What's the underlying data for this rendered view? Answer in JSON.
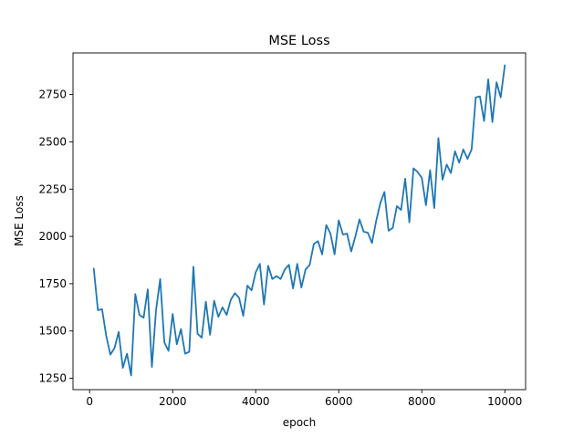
{
  "chart_data": {
    "type": "line",
    "title": "MSE Loss",
    "xlabel": "epoch",
    "ylabel": "MSE Loss",
    "xlim": [
      -400,
      10500
    ],
    "ylim": [
      1190,
      2970
    ],
    "xticks": [
      0,
      2000,
      4000,
      6000,
      8000,
      10000
    ],
    "yticks": [
      1250,
      1500,
      1750,
      2000,
      2250,
      2500,
      2750
    ],
    "grid": false,
    "color": "#1f77b4",
    "x": [
      100,
      200,
      300,
      400,
      500,
      600,
      700,
      800,
      900,
      1000,
      1100,
      1200,
      1300,
      1400,
      1500,
      1600,
      1700,
      1800,
      1900,
      2000,
      2100,
      2200,
      2300,
      2400,
      2500,
      2600,
      2700,
      2800,
      2900,
      3000,
      3100,
      3200,
      3300,
      3400,
      3500,
      3600,
      3700,
      3800,
      3900,
      4000,
      4100,
      4200,
      4300,
      4400,
      4500,
      4600,
      4700,
      4800,
      4900,
      5000,
      5100,
      5200,
      5300,
      5400,
      5500,
      5600,
      5700,
      5800,
      5900,
      6000,
      6100,
      6200,
      6300,
      6400,
      6500,
      6600,
      6700,
      6800,
      6900,
      7000,
      7100,
      7200,
      7300,
      7400,
      7500,
      7600,
      7700,
      7800,
      7900,
      8000,
      8100,
      8200,
      8300,
      8400,
      8500,
      8600,
      8700,
      8800,
      8900,
      9000,
      9100,
      9200,
      9300,
      9400,
      9500,
      9600,
      9700,
      9800,
      9900,
      10000
    ],
    "y": [
      1830,
      1610,
      1615,
      1475,
      1375,
      1410,
      1495,
      1305,
      1380,
      1265,
      1695,
      1585,
      1570,
      1720,
      1310,
      1610,
      1775,
      1440,
      1395,
      1590,
      1430,
      1510,
      1380,
      1390,
      1840,
      1485,
      1465,
      1655,
      1480,
      1660,
      1575,
      1625,
      1585,
      1665,
      1700,
      1675,
      1580,
      1740,
      1715,
      1810,
      1855,
      1640,
      1845,
      1775,
      1790,
      1775,
      1825,
      1850,
      1725,
      1855,
      1730,
      1825,
      1850,
      1960,
      1975,
      1905,
      2060,
      2015,
      1905,
      2085,
      2010,
      2015,
      1920,
      2000,
      2090,
      2025,
      2020,
      1965,
      2080,
      2175,
      2235,
      2030,
      2045,
      2160,
      2140,
      2305,
      2075,
      2360,
      2340,
      2310,
      2165,
      2350,
      2150,
      2520,
      2300,
      2380,
      2335,
      2450,
      2390,
      2460,
      2410,
      2460,
      2735,
      2740,
      2610,
      2830,
      2605,
      2815,
      2735,
      2905
    ]
  }
}
